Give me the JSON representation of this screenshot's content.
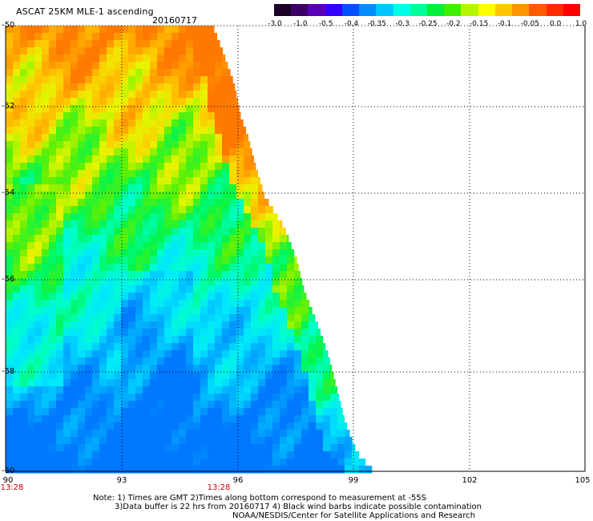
{
  "header": {
    "title": "ASCAT 25KM MLE-1 ascending",
    "date": "20160717"
  },
  "colorbar": {
    "labels": [
      "-3.0",
      "-1.0",
      "-0.5",
      "-0.4",
      "-0.35",
      "-0.3",
      "-0.25",
      "-0.2",
      "-0.15",
      "-0.1",
      "-0.05",
      "0.0",
      "1.0"
    ],
    "colors": [
      "#1a0026",
      "#3c0066",
      "#5a00b4",
      "#3200ff",
      "#0050ff",
      "#008cff",
      "#00c8ff",
      "#00ffe6",
      "#00ff9c",
      "#00f03c",
      "#3cf000",
      "#b4f500",
      "#ffff00",
      "#ffc800",
      "#ff9600",
      "#ff5a00",
      "#ff2a00",
      "#ff0000"
    ]
  },
  "map": {
    "lat_labels": [
      "-50",
      "-52",
      "-54",
      "-56",
      "-58",
      "-60"
    ],
    "lon_labels": [
      "90",
      "93",
      "96",
      "99",
      "102",
      "105"
    ],
    "time_labels": [
      "13:28",
      "13:28"
    ]
  },
  "footer": {
    "note_line1": "Note: 1) Times are GMT 2)Times along bottom correspond to measurement at -55S",
    "note_line2": "3)Data buffer is 22 hrs from 20160717 4) Black wind barbs indicate possible contamination",
    "credit": "NOAA/NESDIS/Center for Satellite Applications and Research"
  }
}
